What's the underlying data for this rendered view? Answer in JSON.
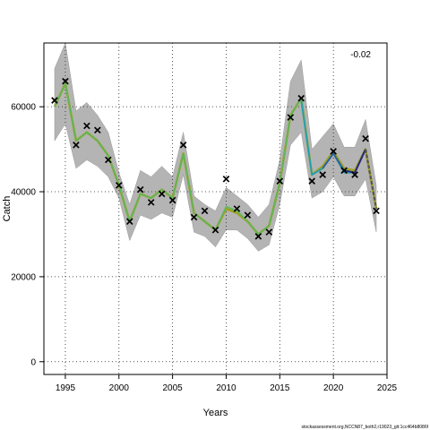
{
  "chart_data": {
    "type": "line",
    "xlabel": "Years",
    "ylabel": "Catch",
    "annotation": "-0.02",
    "credit": "stockassessment.org,NCCN87_both2,r19023_git:1cc464b8086f",
    "xlim": [
      1993.0,
      2025.0
    ],
    "ylim": [
      -3000,
      75000
    ],
    "xticks": [
      1995,
      2000,
      2005,
      2010,
      2015,
      2020,
      2025
    ],
    "yticks": [
      0,
      20000,
      40000,
      60000
    ],
    "grid": true,
    "band": {
      "x": [
        1994,
        1995,
        1996,
        1997,
        1998,
        1999,
        2000,
        2001,
        2002,
        2003,
        2004,
        2005,
        2006,
        2007,
        2008,
        2009,
        2010,
        2011,
        2012,
        2013,
        2014,
        2015,
        2016,
        2017,
        2018,
        2019,
        2020,
        2021,
        2022,
        2023,
        2024
      ],
      "lower": [
        52000,
        56000,
        45500,
        47500,
        46000,
        43500,
        38500,
        28500,
        34500,
        33500,
        35000,
        34000,
        44000,
        30500,
        29500,
        27000,
        31000,
        31000,
        29000,
        26000,
        27500,
        37000,
        51000,
        54000,
        38500,
        40000,
        43500,
        39000,
        39000,
        43000,
        30500
      ],
      "upper": [
        69000,
        75000,
        59000,
        61000,
        58000,
        54000,
        44500,
        37000,
        45000,
        43500,
        46000,
        43500,
        54000,
        39000,
        37000,
        35500,
        41000,
        39000,
        37000,
        34000,
        37000,
        47500,
        66000,
        71000,
        50000,
        53000,
        56000,
        50500,
        50500,
        57000,
        41500
      ]
    },
    "observed": {
      "x": [
        1994,
        1995,
        1996,
        1997,
        1998,
        1999,
        2000,
        2001,
        2002,
        2003,
        2004,
        2005,
        2006,
        2007,
        2008,
        2009,
        2010,
        2011,
        2012,
        2013,
        2014,
        2015,
        2016,
        2017,
        2018,
        2019,
        2020,
        2021,
        2022,
        2023,
        2024
      ],
      "y": [
        61500,
        66000,
        51000,
        55500,
        54500,
        47500,
        41500,
        33000,
        40500,
        37500,
        39500,
        38000,
        51000,
        34000,
        35500,
        31000,
        43000,
        36000,
        34500,
        29500,
        30500,
        42500,
        57500,
        62000,
        42500,
        44000,
        49500,
        45000,
        44000,
        52500,
        35500
      ]
    },
    "series": [
      {
        "years": [
          1994,
          1995,
          1996,
          1997,
          1998,
          1999,
          2000,
          2001,
          2002,
          2003,
          2004,
          2005,
          2006,
          2007,
          2008,
          2009,
          2010,
          2011,
          2012,
          2013,
          2014,
          2015,
          2016,
          2017,
          2018,
          2019,
          2020,
          2021,
          2022,
          2023,
          2024
        ],
        "values": [
          60000,
          65500,
          52000,
          54000,
          52000,
          48500,
          41500,
          33000,
          39500,
          38500,
          40500,
          38500,
          49000,
          35000,
          33000,
          31000,
          36000,
          35000,
          33000,
          30000,
          32000,
          42000,
          58000,
          62000,
          44000,
          46000,
          49500,
          45500,
          45000,
          50000,
          36000
        ],
        "color": "#a0a020",
        "width": 2.5
      },
      {
        "years": [
          1994,
          1995,
          1996,
          1997,
          1998,
          1999,
          2000,
          2001,
          2002,
          2003,
          2004,
          2005,
          2006,
          2007,
          2008,
          2009,
          2010,
          2011,
          2012,
          2013,
          2014,
          2015,
          2016,
          2017,
          2018,
          2019,
          2020
        ],
        "values": [
          60000,
          65500,
          52000,
          54000,
          52000,
          48500,
          41500,
          33000,
          39500,
          38500,
          40500,
          38500,
          49000,
          35000,
          33000,
          31000,
          36500,
          35500,
          33000,
          30000,
          32000,
          42000,
          58000,
          62000,
          44000,
          45500,
          49000
        ],
        "color": "#5bb85a",
        "width": 1.6
      },
      {
        "years": [
          2017,
          2018,
          2019,
          2020,
          2021,
          2022
        ],
        "values": [
          61500,
          44000,
          45500,
          49000,
          44500,
          44500
        ],
        "color": "#20a0b0",
        "width": 1.8
      },
      {
        "years": [
          2019,
          2020,
          2021,
          2022,
          2023
        ],
        "values": [
          45500,
          49000,
          45000,
          44500,
          50000
        ],
        "color": "#2e5e9e",
        "width": 1.8
      },
      {
        "years": [
          2021,
          2022,
          2023
        ],
        "values": [
          45000,
          44500,
          50000
        ],
        "color": "#282878",
        "width": 2.0
      },
      {
        "years": [
          2023,
          2024
        ],
        "values": [
          50000,
          36000
        ],
        "color": "#555555",
        "width": 2.2,
        "dash": "4,2"
      }
    ]
  }
}
